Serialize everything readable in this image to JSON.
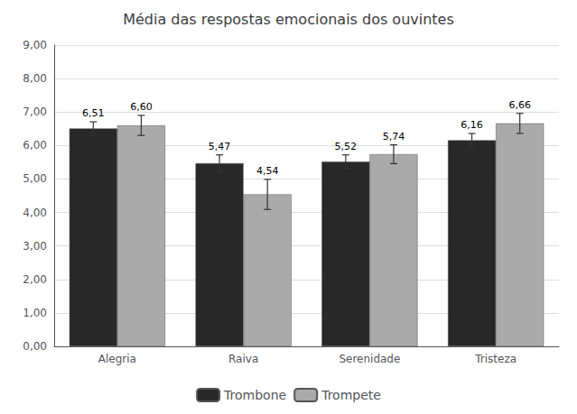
{
  "chart_data": {
    "type": "bar",
    "title": "Média das respostas emocionais dos ouvintes",
    "categories": [
      "Alegria",
      "Raiva",
      "Serenidade",
      "Tristeza"
    ],
    "series": [
      {
        "name": "Trombone",
        "color": "#282828",
        "values": [
          6.51,
          5.47,
          5.52,
          6.16
        ],
        "errors": [
          0.2,
          0.25,
          0.2,
          0.2
        ],
        "value_labels": [
          "6,51",
          "5,47",
          "5,52",
          "6,16"
        ]
      },
      {
        "name": "Trompete",
        "color": "#aaaaaa",
        "values": [
          6.6,
          4.54,
          5.74,
          6.66
        ],
        "errors": [
          0.3,
          0.45,
          0.28,
          0.3
        ],
        "value_labels": [
          "6,60",
          "4,54",
          "5,74",
          "6,66"
        ]
      }
    ],
    "ylim": [
      0,
      9.0
    ],
    "yticks": [
      {
        "value": 0.0,
        "label": "0,00"
      },
      {
        "value": 1.0,
        "label": "1,00"
      },
      {
        "value": 2.0,
        "label": "2,00"
      },
      {
        "value": 3.0,
        "label": "3,00"
      },
      {
        "value": 4.0,
        "label": "4,00"
      },
      {
        "value": 5.0,
        "label": "5,00"
      },
      {
        "value": 6.0,
        "label": "6,00"
      },
      {
        "value": 7.0,
        "label": "7,00"
      },
      {
        "value": 8.0,
        "label": "8,00"
      },
      {
        "value": 9.0,
        "label": "9,00"
      }
    ],
    "grid": true,
    "legend": "bottom",
    "data_labels": true
  }
}
